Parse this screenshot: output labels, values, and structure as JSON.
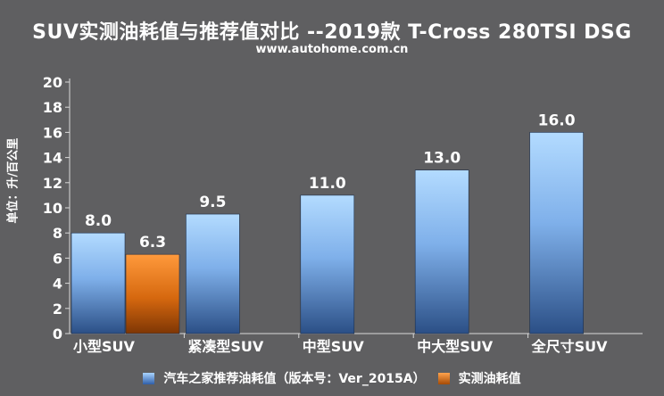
{
  "title": "SUV实测油耗值与推荐值对比 --2019款 T-Cross 280TSI DSG",
  "subtitle": "www.autohome.com.cn",
  "chart_data": {
    "type": "bar",
    "ylabel": "单位：升/百公里",
    "ylim": [
      0,
      20
    ],
    "yticks": [
      0,
      2,
      4,
      6,
      8,
      10,
      12,
      14,
      16,
      18,
      20
    ],
    "categories": [
      "小型SUV",
      "紧凑型SUV",
      "中型SUV",
      "中大型SUV",
      "全尺寸SUV"
    ],
    "series": [
      {
        "name": "汽车之家推荐油耗值（版本号：Ver_2015A）",
        "values": [
          8.0,
          9.5,
          11.0,
          13.0,
          16.0
        ],
        "color": "#5d8fd6"
      },
      {
        "name": "实测油耗值",
        "values": [
          6.3,
          null,
          null,
          null,
          null
        ],
        "color": "#d9701a"
      }
    ],
    "value_labels": [
      [
        "8.0",
        "9.5",
        "11.0",
        "13.0",
        "16.0"
      ],
      [
        "6.3",
        "",
        "",
        "",
        ""
      ]
    ],
    "grid": false,
    "legend_position": "bottom"
  }
}
